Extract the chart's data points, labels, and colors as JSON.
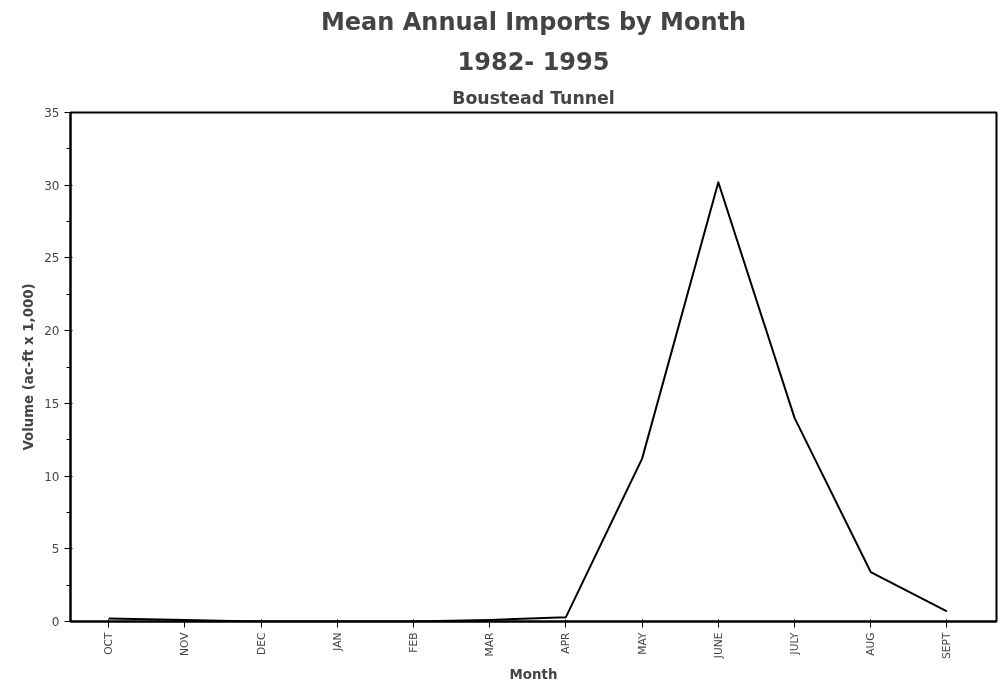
{
  "chart_data": {
    "type": "line",
    "title": "Mean Annual Imports by Month",
    "subtitle": "1982- 1995",
    "annotations": [
      "Boustead Tunnel"
    ],
    "xlabel": "Month",
    "ylabel": "Volume (ac-ft x 1,000)",
    "categories": [
      "OCT",
      "NOV",
      "DEC",
      "JAN",
      "FEB",
      "MAR",
      "APR",
      "MAY",
      "JUNE",
      "JULY",
      "AUG",
      "SEPT"
    ],
    "series": [
      {
        "color": "#000000",
        "values": [
          0.2,
          0.1,
          0.0,
          0.0,
          0.0,
          0.1,
          0.3,
          11.2,
          30.2,
          14.0,
          3.4,
          0.7
        ]
      }
    ],
    "ylim": [
      0,
      35
    ],
    "yticks": [
      0,
      5,
      10,
      15,
      20,
      25,
      30,
      35
    ],
    "marker": "none",
    "line_style": "solid"
  }
}
